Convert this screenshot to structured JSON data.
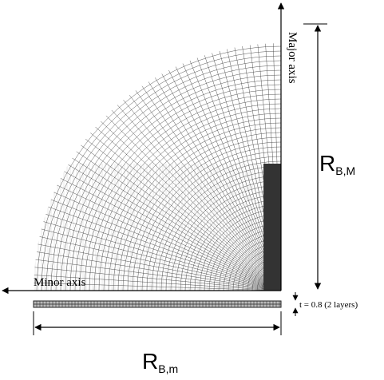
{
  "labels": {
    "major_axis": "Major axis",
    "minor_axis": "Minor axis",
    "r_major": {
      "base": "R",
      "sub": "B,M"
    },
    "r_minor": {
      "base": "R",
      "sub": "B,m"
    },
    "thickness": "t = 0.8 (2 layers)"
  }
}
